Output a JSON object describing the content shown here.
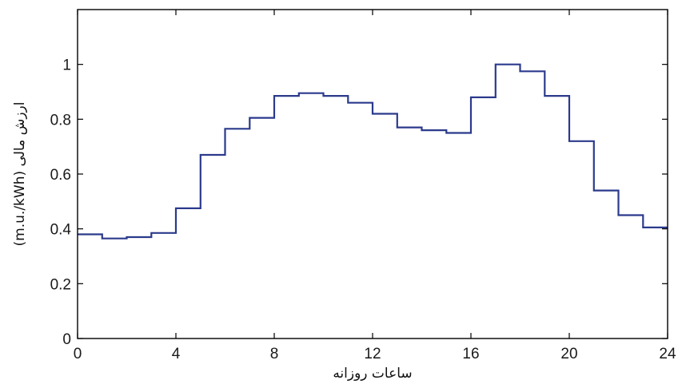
{
  "chart_data": {
    "type": "line",
    "style": "step",
    "xlabel": "ساعات روزانه",
    "ylabel": "ارزش مالی (m.u./kWh)",
    "xlim": [
      0,
      24
    ],
    "ylim": [
      0,
      1.2
    ],
    "xticks": [
      0,
      4,
      8,
      12,
      16,
      20,
      24
    ],
    "xtick_labels": [
      "0",
      "4",
      "8",
      "12",
      "16",
      "20",
      "24"
    ],
    "yticks": [
      0,
      0.2,
      0.4,
      0.6,
      0.8,
      1
    ],
    "ytick_labels": [
      "0",
      "0.2",
      "0.4",
      "0.6",
      "0.8",
      "1"
    ],
    "grid": false,
    "line_color": "#2b3a8c",
    "x": [
      0,
      1,
      2,
      3,
      4,
      5,
      6,
      7,
      8,
      9,
      10,
      11,
      12,
      13,
      14,
      15,
      16,
      17,
      18,
      19,
      20,
      21,
      22,
      23
    ],
    "values": [
      0.38,
      0.365,
      0.37,
      0.385,
      0.475,
      0.67,
      0.765,
      0.805,
      0.885,
      0.895,
      0.885,
      0.86,
      0.82,
      0.77,
      0.76,
      0.75,
      0.88,
      1.0,
      0.975,
      0.885,
      0.72,
      0.54,
      0.45,
      0.405
    ]
  }
}
